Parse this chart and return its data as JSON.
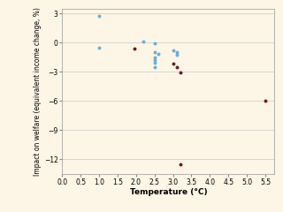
{
  "blue_points": [
    [
      1.0,
      2.7
    ],
    [
      1.0,
      -0.5
    ],
    [
      2.2,
      0.1
    ],
    [
      2.5,
      -0.1
    ],
    [
      2.5,
      -1.0
    ],
    [
      2.5,
      -1.5
    ],
    [
      2.5,
      -1.8
    ],
    [
      2.5,
      -2.1
    ],
    [
      2.5,
      -2.5
    ],
    [
      2.6,
      -1.2
    ],
    [
      3.0,
      -0.8
    ],
    [
      3.1,
      -1.0
    ],
    [
      3.1,
      -1.3
    ]
  ],
  "dark_red_points": [
    [
      1.95,
      -0.6
    ],
    [
      3.0,
      -2.2
    ],
    [
      3.1,
      -2.5
    ],
    [
      3.2,
      -3.1
    ],
    [
      5.5,
      -6.0
    ],
    [
      3.2,
      -12.5
    ]
  ],
  "blue_color": "#6baed6",
  "dark_red_color": "#6b1a2f",
  "bg_color": "#fdf5e6",
  "xlabel": "Temperature (°C)",
  "ylabel": "Impact on welfare (equivalent income change, %)",
  "xlim": [
    0.0,
    5.75
  ],
  "ylim": [
    -13.5,
    3.5
  ],
  "xticks": [
    0.0,
    0.5,
    1.0,
    1.5,
    2.0,
    2.5,
    3.0,
    3.5,
    4.0,
    4.5,
    5.0,
    5.5
  ],
  "yticks": [
    3,
    0,
    -3,
    -6,
    -9,
    -12
  ],
  "grid_color": "#c8c8c8",
  "xlabel_fontsize": 6.5,
  "ylabel_fontsize": 5.5,
  "tick_fontsize": 5.5,
  "marker_size": 8
}
